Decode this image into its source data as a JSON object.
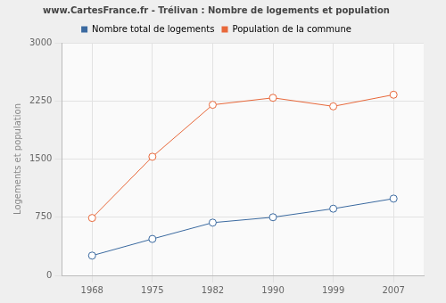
{
  "chart_data": {
    "type": "line",
    "title": "www.CartesFrance.fr - Trélivan : Nombre de logements et population",
    "y_label": "Logements et population",
    "categories": [
      "1968",
      "1975",
      "1982",
      "1990",
      "1999",
      "2007"
    ],
    "series": [
      {
        "name": "Nombre total de logements",
        "color": "#3b6aa0",
        "marker": "circle",
        "values": [
          255,
          470,
          680,
          750,
          860,
          990
        ]
      },
      {
        "name": "Population de la commune",
        "color": "#e8683a",
        "marker": "circle",
        "values": [
          740,
          1530,
          2200,
          2290,
          2180,
          2330
        ]
      }
    ],
    "ylim": [
      0,
      3000
    ],
    "yticks": [
      0,
      750,
      1500,
      2250,
      3000
    ],
    "grid": true,
    "legend": "top"
  }
}
